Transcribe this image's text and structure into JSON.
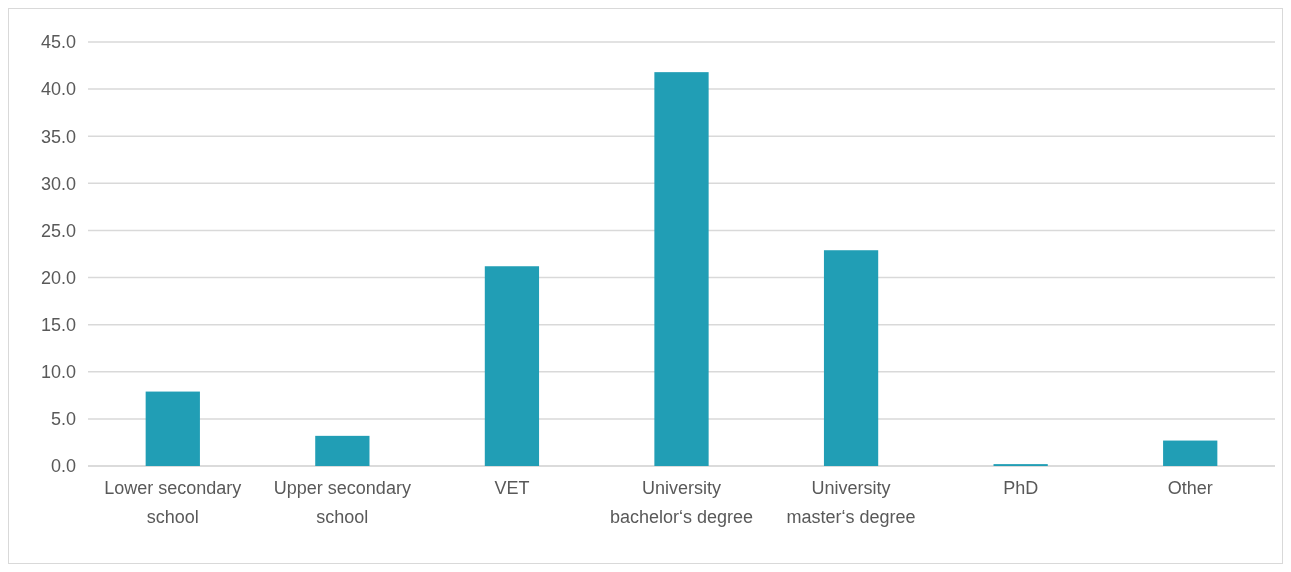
{
  "chart_data": {
    "type": "bar",
    "categories": [
      "Lower secondary school",
      "Upper secondary school",
      "VET",
      "University bachelor‘s degree",
      "University master‘s degree",
      "PhD",
      "Other"
    ],
    "values": [
      7.9,
      3.2,
      21.2,
      41.8,
      22.9,
      0.2,
      2.7
    ],
    "color": "#219eb5",
    "ylim": [
      0,
      45
    ],
    "yticks": [
      {
        "value": 0,
        "label": "0.0"
      },
      {
        "value": 5,
        "label": "5.0"
      },
      {
        "value": 10,
        "label": "10.0"
      },
      {
        "value": 15,
        "label": "15.0"
      },
      {
        "value": 20,
        "label": "20.0"
      },
      {
        "value": 25,
        "label": "25.0"
      },
      {
        "value": 30,
        "label": "30.0"
      },
      {
        "value": 35,
        "label": "35.0"
      },
      {
        "value": 40,
        "label": "40.0"
      },
      {
        "value": 45,
        "label": "45.0"
      }
    ],
    "grid": "y"
  }
}
